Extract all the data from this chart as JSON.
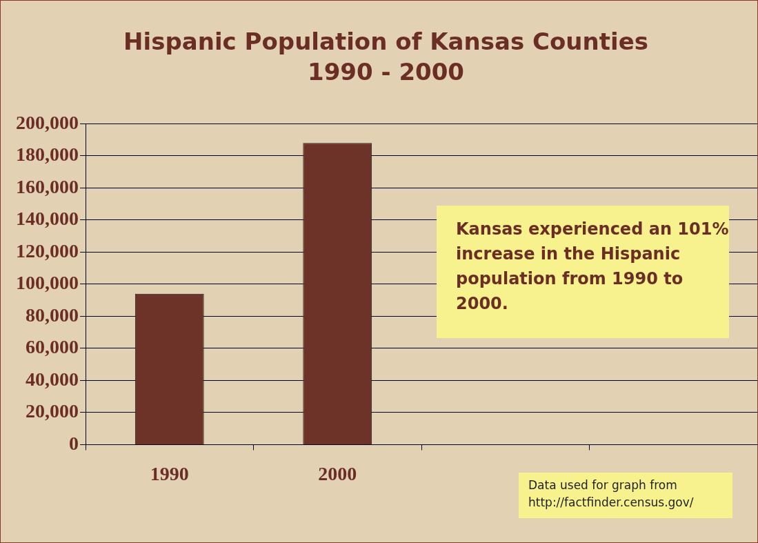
{
  "chart_data": {
    "type": "bar",
    "title": [
      "Hispanic Population of Kansas Counties",
      "1990 - 2000"
    ],
    "categories": [
      "1990",
      "2000",
      null,
      null
    ],
    "values": [
      94000,
      188000,
      null,
      null
    ],
    "color": "#6e3328",
    "ylim": [
      0,
      200000
    ],
    "yticks": [
      {
        "value": 0,
        "label": "0"
      },
      {
        "value": 20000,
        "label": "20,000"
      },
      {
        "value": 40000,
        "label": "40,000"
      },
      {
        "value": 60000,
        "label": "60,000"
      },
      {
        "value": 80000,
        "label": "80,000"
      },
      {
        "value": 100000,
        "label": "100,000"
      },
      {
        "value": 120000,
        "label": "120,000"
      },
      {
        "value": 140000,
        "label": "140,000"
      },
      {
        "value": 160000,
        "label": "160,000"
      },
      {
        "value": 180000,
        "label": "180,000"
      },
      {
        "value": 200000,
        "label": "200,000"
      }
    ],
    "grid": "y",
    "legend": false,
    "annotations": [
      "Kansas experienced an 101% increase in the Hispanic population from 1990 to 2000.",
      "Data used for graph from http://factfinder.census.gov/"
    ]
  }
}
